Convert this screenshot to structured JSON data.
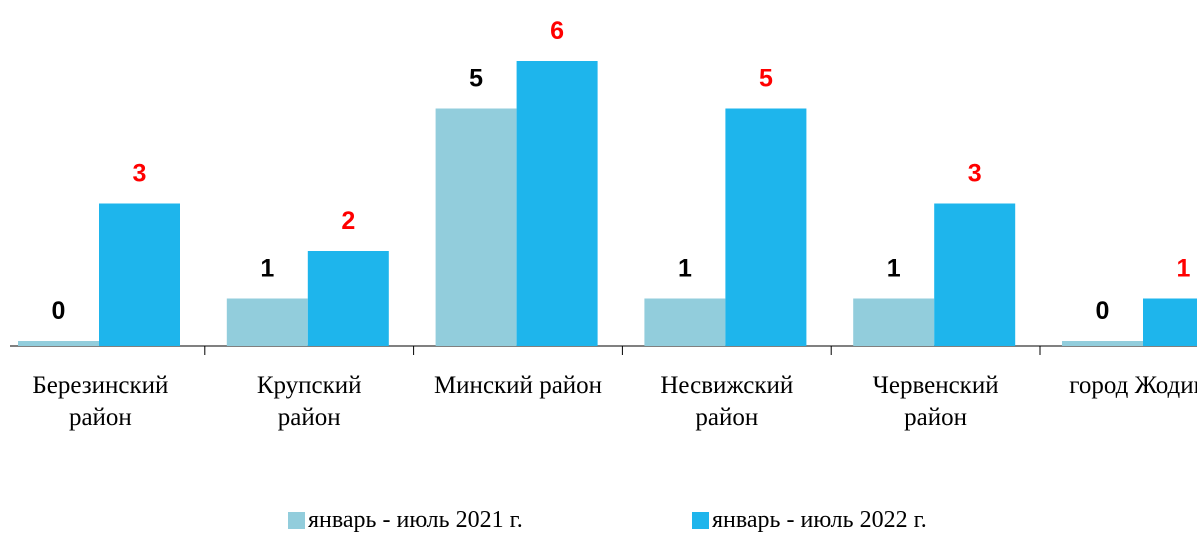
{
  "chart_data": {
    "type": "bar",
    "categories": [
      "Березинский район",
      "Крупский район",
      "Минский район",
      "Несвижский район",
      "Червенский район",
      "город Жодино"
    ],
    "series": [
      {
        "name": "январь - июль 2021 г.",
        "color": "#92cddc",
        "label_color": "#000000",
        "values": [
          0,
          1,
          5,
          1,
          1,
          0
        ]
      },
      {
        "name": "январь - июль 2022 г.",
        "color": "#1eb5ec",
        "label_color": "#ff0000",
        "values": [
          3,
          2,
          6,
          5,
          3,
          1
        ]
      }
    ],
    "ylim": [
      0,
      6
    ],
    "grid": false,
    "legend": "bottom"
  }
}
